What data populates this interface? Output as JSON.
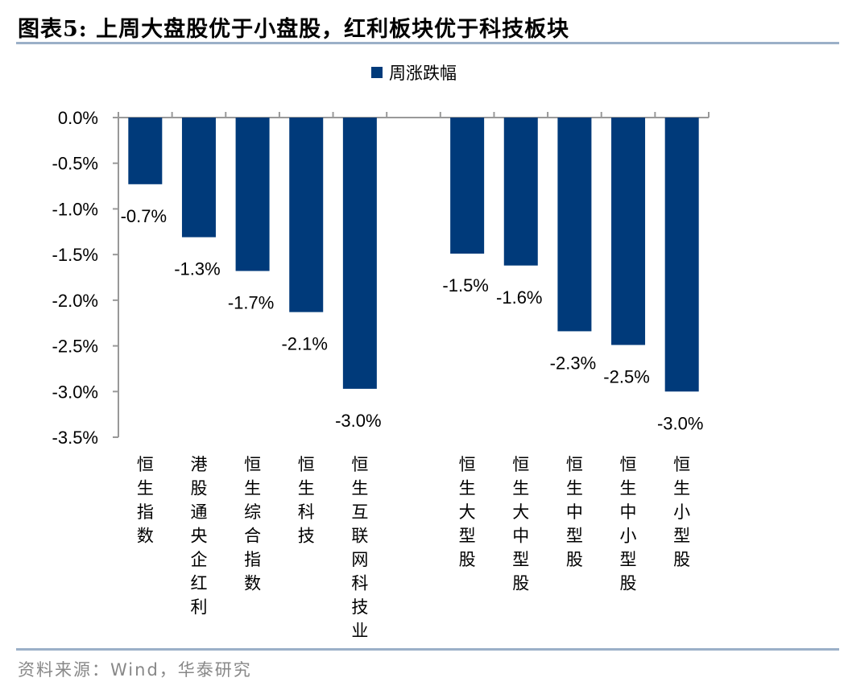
{
  "title": "图表5:  上周大盘股优于小盘股，红利板块优于科技板块",
  "source": "资料来源：Wind，华泰研究",
  "colors": {
    "bar": "#003a7a",
    "axis": "#999999",
    "rule": "#9bb0c8"
  },
  "chart_data": {
    "type": "bar",
    "legend": {
      "label": "周涨跌幅",
      "placement": "top-center"
    },
    "categories": [
      "恒生指数",
      "港股通央企红利",
      "恒生综合指数",
      "恒生科技",
      "恒生互联网科技业",
      "",
      "恒生大型股",
      "恒生大中型股",
      "恒生中型股",
      "恒生中小型股",
      "恒生小型股"
    ],
    "series": [
      {
        "name": "周涨跌幅",
        "values": [
          -0.73,
          -1.31,
          -1.68,
          -2.13,
          -2.97,
          null,
          -1.49,
          -1.62,
          -2.34,
          -2.49,
          -3.0
        ]
      }
    ],
    "data_labels": [
      "-0.7%",
      "-1.3%",
      "-1.7%",
      "-2.1%",
      "-3.0%",
      "",
      "-1.5%",
      "-1.6%",
      "-2.3%",
      "-2.5%",
      "-3.0%"
    ],
    "ylim": [
      -3.5,
      0
    ],
    "yticks": [
      0,
      -0.5,
      -1.0,
      -1.5,
      -2.0,
      -2.5,
      -3.0,
      -3.5
    ],
    "ytick_labels": [
      "0.0%",
      "-0.5%",
      "-1.0%",
      "-1.5%",
      "-2.0%",
      "-2.5%",
      "-3.0%",
      "-3.5%"
    ],
    "grid": false
  }
}
